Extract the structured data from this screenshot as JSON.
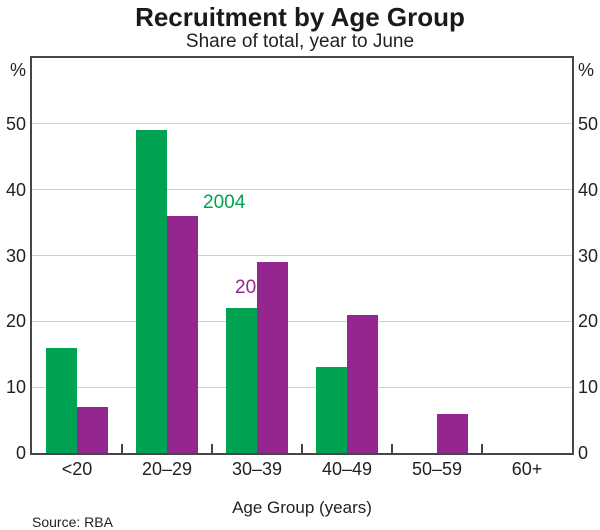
{
  "chart": {
    "title": "Recruitment by Age Group",
    "subtitle": "Share of total, year to June",
    "source": "Source: RBA",
    "axis_unit_label": "%",
    "series_annotations": [
      "2004",
      "2014"
    ]
  },
  "chart_data": {
    "type": "bar",
    "categories": [
      "<20",
      "20–29",
      "30–39",
      "40–49",
      "50–59",
      "60+"
    ],
    "series": [
      {
        "name": "2004",
        "color": "#00a351",
        "values": [
          16,
          49,
          22,
          13,
          0,
          0
        ]
      },
      {
        "name": "2014",
        "color": "#93278f",
        "values": [
          7,
          36,
          29,
          21,
          6,
          0
        ]
      }
    ],
    "title": "Recruitment by Age Group",
    "subtitle": "Share of total, year to June",
    "xlabel": "Age Group (years)",
    "ylabel": "%",
    "ylim": [
      0,
      60
    ],
    "yticks": [
      0,
      10,
      20,
      30,
      40,
      50
    ],
    "grid": true,
    "legend_position": "inline-annotations",
    "source": "Source: RBA"
  }
}
